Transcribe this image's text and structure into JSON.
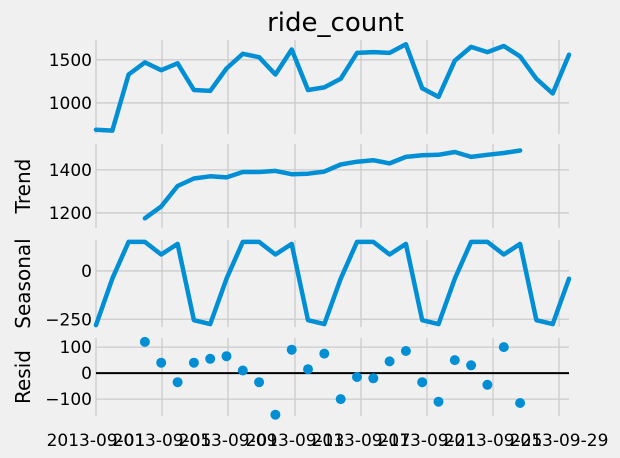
{
  "chart_data": [
    {
      "panel": "observed",
      "type": "line",
      "title": "ride_count",
      "ylabel": "",
      "ylim": [
        640,
        1730
      ],
      "yticks": [
        1000,
        1500
      ],
      "color": "#008fd5",
      "values": [
        690,
        680,
        1330,
        1470,
        1380,
        1460,
        1150,
        1140,
        1400,
        1570,
        1530,
        1330,
        1620,
        1150,
        1180,
        1280,
        1580,
        1590,
        1580,
        1680,
        1170,
        1070,
        1490,
        1650,
        1590,
        1660,
        1540,
        1280,
        1110,
        1560
      ]
    },
    {
      "panel": "trend",
      "type": "line",
      "title": "",
      "ylabel": "Trend",
      "ylim": [
        1130,
        1520
      ],
      "yticks": [
        1200,
        1400
      ],
      "color": "#008fd5",
      "values": [
        null,
        null,
        null,
        1175,
        1230,
        1325,
        1360,
        1370,
        1365,
        1390,
        1390,
        1395,
        1380,
        1382,
        1392,
        1425,
        1438,
        1445,
        1430,
        1460,
        1468,
        1470,
        1483,
        1460,
        1470,
        1478,
        1490,
        null,
        null,
        null
      ]
    },
    {
      "panel": "seasonal",
      "type": "line",
      "title": "",
      "ylabel": "Seasonal",
      "ylim": [
        -290,
        160
      ],
      "yticks": [
        -250,
        0
      ],
      "color": "#008fd5",
      "values": [
        -280,
        -40,
        150,
        150,
        85,
        140,
        -255,
        -275,
        -40,
        150,
        150,
        85,
        140,
        -255,
        -275,
        -40,
        150,
        150,
        85,
        140,
        -255,
        -275,
        -40,
        150,
        150,
        85,
        140,
        -255,
        -275,
        -40
      ]
    },
    {
      "panel": "resid",
      "type": "scatter",
      "title": "",
      "ylabel": "Resid",
      "ylim": [
        -165,
        135
      ],
      "yticks": [
        -100,
        0,
        100
      ],
      "color": "#008fd5",
      "values": [
        null,
        null,
        null,
        120,
        40,
        -35,
        40,
        55,
        65,
        10,
        -35,
        -160,
        90,
        15,
        75,
        -100,
        -15,
        -20,
        45,
        85,
        -35,
        -110,
        50,
        30,
        -45,
        100,
        -115,
        null,
        null,
        null
      ],
      "xticks": [
        "2013-09-01",
        "2013-09-05",
        "2013-09-09",
        "2013-09-13",
        "2013-09-17",
        "2013-09-21",
        "2013-09-25",
        "2013-09-29"
      ]
    }
  ]
}
